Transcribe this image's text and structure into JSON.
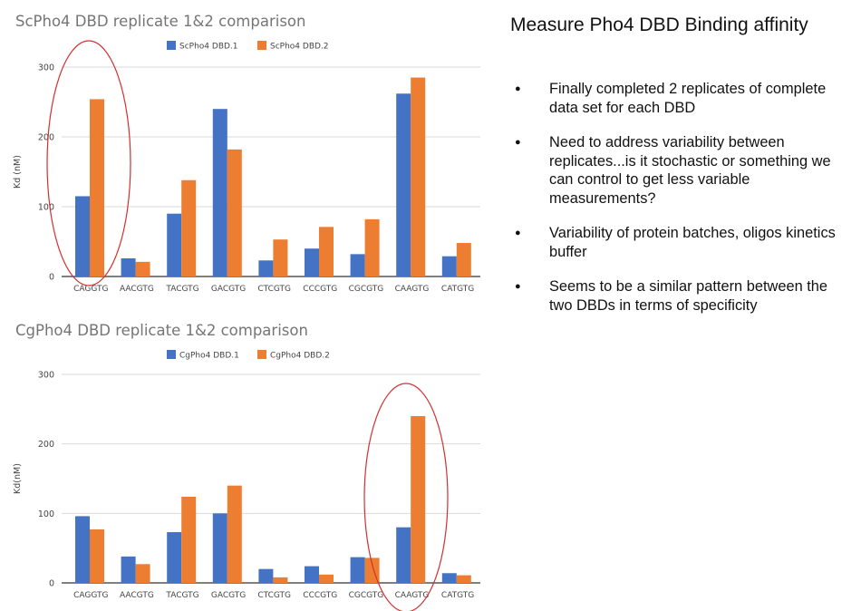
{
  "slide": {
    "title": "Measure Pho4 DBD Binding affinity",
    "bullets": [
      "Finally completed 2 replicates of complete data set for each DBD",
      "Need to address variability between replicates...is it stochastic or something we can control to get less variable measurements?",
      "Variability of protein batches, oligos kinetics buffer",
      "Seems to be a similar pattern between the two DBDs in terms of specificity"
    ]
  },
  "colors": {
    "series1": "#4472C4",
    "series2": "#ED7D31",
    "annotation": "#D32F2F",
    "grid": "#D9D9D9"
  },
  "chart_data": [
    {
      "type": "bar",
      "title": "ScPho4 DBD replicate 1&2 comparison",
      "ylabel": "Kd (nM)",
      "xlabel": "",
      "ylim": [
        0,
        300
      ],
      "yticks": [
        0,
        100,
        200,
        300
      ],
      "grid": true,
      "legend": "top",
      "categories": [
        "CAGGTG",
        "AACGTG",
        "TACGTG",
        "GACGTG",
        "CTCGTG",
        "CCCGTG",
        "CGCGTG",
        "CAAGTG",
        "CATGTG"
      ],
      "series": [
        {
          "name": "ScPho4 DBD.1",
          "values": [
            115,
            26,
            90,
            240,
            23,
            40,
            32,
            262,
            29
          ]
        },
        {
          "name": "ScPho4 DBD.2",
          "values": [
            254,
            21,
            138,
            182,
            53,
            71,
            82,
            285,
            48
          ]
        }
      ],
      "annotations": [
        {
          "type": "ellipse",
          "around_category": "CAGGTG"
        }
      ]
    },
    {
      "type": "bar",
      "title": "CgPho4 DBD replicate 1&2 comparison",
      "ylabel": "Kd(nM)",
      "xlabel": "",
      "ylim": [
        0,
        300
      ],
      "yticks": [
        0,
        100,
        200,
        300
      ],
      "grid": true,
      "legend": "top",
      "categories": [
        "CAGGTG",
        "AACGTG",
        "TACGTG",
        "GACGTG",
        "CTCGTG",
        "CCCGTG",
        "CGCGTG",
        "CAAGTG",
        "CATGTG"
      ],
      "series": [
        {
          "name": "CgPho4 DBD.1",
          "values": [
            96,
            38,
            73,
            100,
            20,
            24,
            37,
            80,
            14
          ]
        },
        {
          "name": "CgPho4 DBD.2",
          "values": [
            77,
            27,
            124,
            140,
            8,
            12,
            36,
            240,
            11
          ]
        }
      ],
      "annotations": [
        {
          "type": "ellipse",
          "around_category": "CAAGTG"
        }
      ]
    }
  ]
}
